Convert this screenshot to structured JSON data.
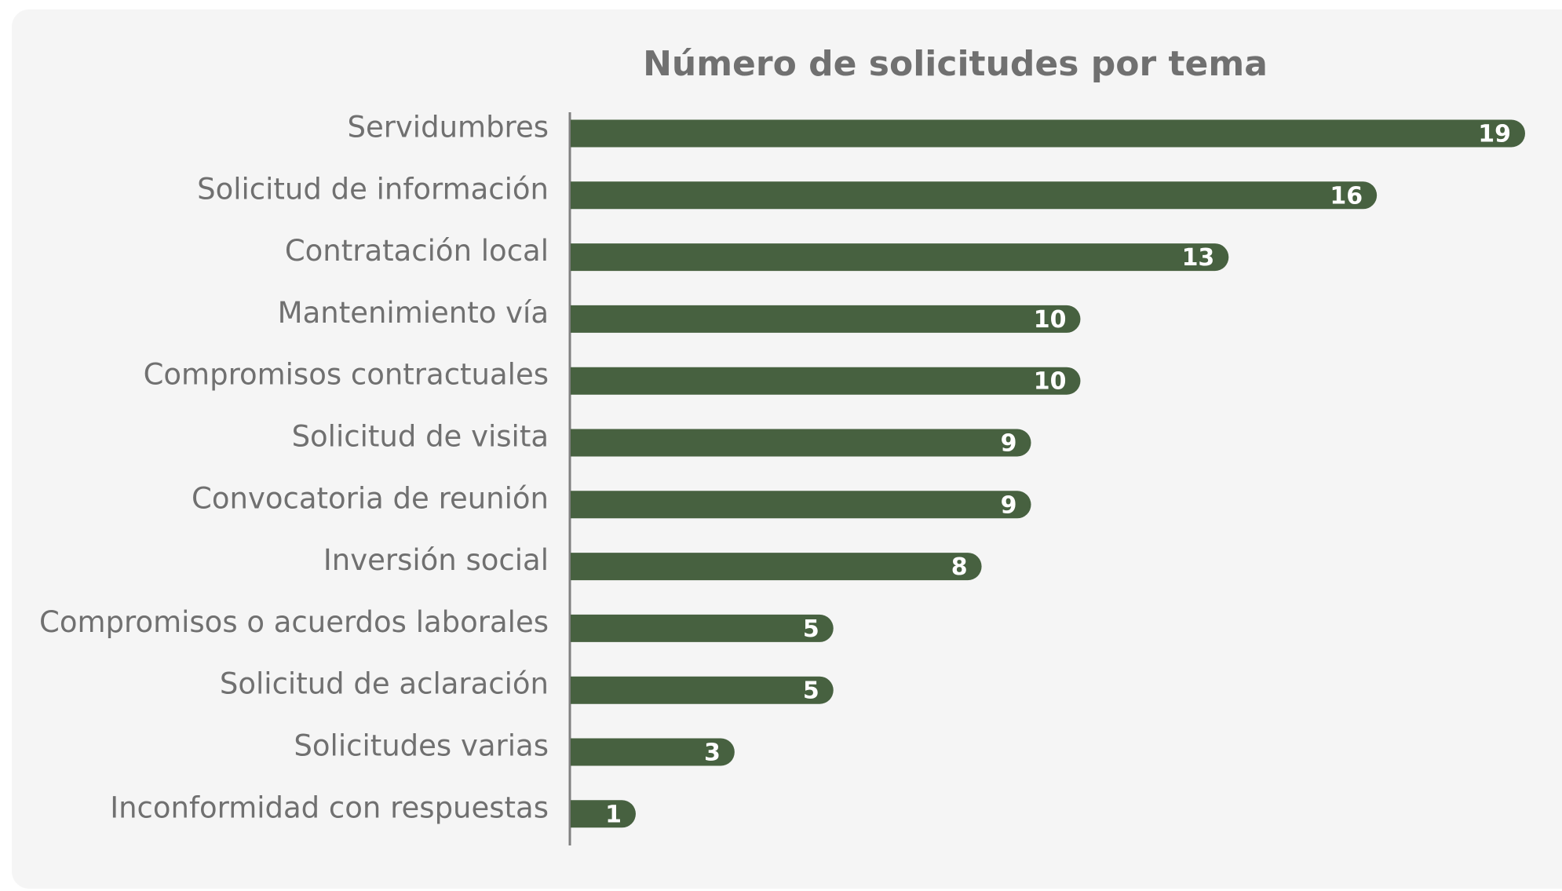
{
  "chart_data": {
    "type": "bar",
    "orientation": "horizontal",
    "title": "Número de solicitudes por tema",
    "categories": [
      "Servidumbres",
      "Solicitud de información",
      "Contratación local",
      "Mantenimiento vía",
      "Compromisos contractuales",
      "Solicitud de visita",
      "Convocatoria de reunión",
      "Inversión social",
      "Compromisos o acuerdos laborales",
      "Solicitud de aclaración",
      "Solicitudes varias",
      "Inconformidad con respuestas"
    ],
    "values": [
      19,
      16,
      13,
      10,
      10,
      9,
      9,
      8,
      5,
      5,
      3,
      1
    ],
    "color": "#476140"
  }
}
